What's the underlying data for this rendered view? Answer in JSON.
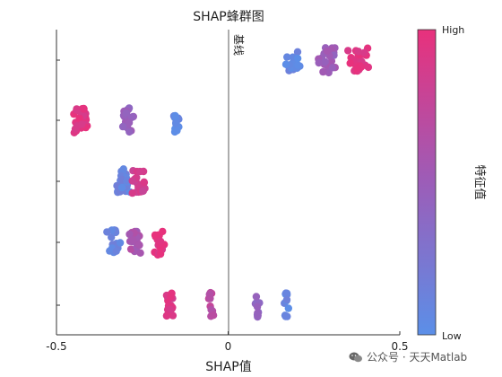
{
  "chart_data": {
    "type": "scatter",
    "subtype": "beeswarm",
    "title": "SHAP蜂群图",
    "xlabel": "SHAP值",
    "xlim": [
      -0.5,
      0.5
    ],
    "xticks": [
      -0.5,
      0,
      0.5
    ],
    "xtick_labels": [
      "-0.5",
      "0",
      "0.5"
    ],
    "baseline_label": "基线",
    "baseline_x": 0,
    "rows": [
      {
        "row": 1,
        "clusters": [
          {
            "center": 0.19,
            "spread": 0.035,
            "count": 16,
            "feature_level": 0.08
          },
          {
            "center": 0.29,
            "spread": 0.04,
            "count": 24,
            "feature_level": 0.5
          },
          {
            "center": 0.38,
            "spread": 0.04,
            "count": 28,
            "feature_level": 0.95
          }
        ]
      },
      {
        "row": 2,
        "clusters": [
          {
            "center": -0.43,
            "spread": 0.025,
            "count": 26,
            "feature_level": 0.95
          },
          {
            "center": -0.29,
            "spread": 0.02,
            "count": 22,
            "feature_level": 0.45
          },
          {
            "center": -0.15,
            "spread": 0.01,
            "count": 16,
            "feature_level": 0.05
          }
        ]
      },
      {
        "row": 3,
        "clusters": [
          {
            "center": -0.31,
            "spread": 0.025,
            "count": 26,
            "feature_level": 0.1
          },
          {
            "center": -0.26,
            "spread": 0.025,
            "count": 22,
            "feature_level": 0.85
          }
        ]
      },
      {
        "row": 4,
        "clusters": [
          {
            "center": -0.33,
            "spread": 0.025,
            "count": 18,
            "feature_level": 0.12
          },
          {
            "center": -0.27,
            "spread": 0.02,
            "count": 22,
            "feature_level": 0.6
          },
          {
            "center": -0.2,
            "spread": 0.015,
            "count": 18,
            "feature_level": 0.95
          }
        ]
      },
      {
        "row": 5,
        "clusters": [
          {
            "center": -0.17,
            "spread": 0.02,
            "count": 22,
            "feature_level": 0.92
          },
          {
            "center": -0.05,
            "spread": 0.008,
            "count": 10,
            "feature_level": 0.7
          },
          {
            "center": 0.085,
            "spread": 0.008,
            "count": 12,
            "feature_level": 0.4
          },
          {
            "center": 0.17,
            "spread": 0.008,
            "count": 12,
            "feature_level": 0.08
          }
        ]
      }
    ],
    "colorbar": {
      "label": "特征值",
      "high_label": "High",
      "low_label": "Low",
      "color_low": "#5b8fe8",
      "color_high": "#e8317c"
    },
    "grid": false
  },
  "watermark": {
    "text": "公众号 · 天天Matlab",
    "icon": "wechat-icon"
  }
}
